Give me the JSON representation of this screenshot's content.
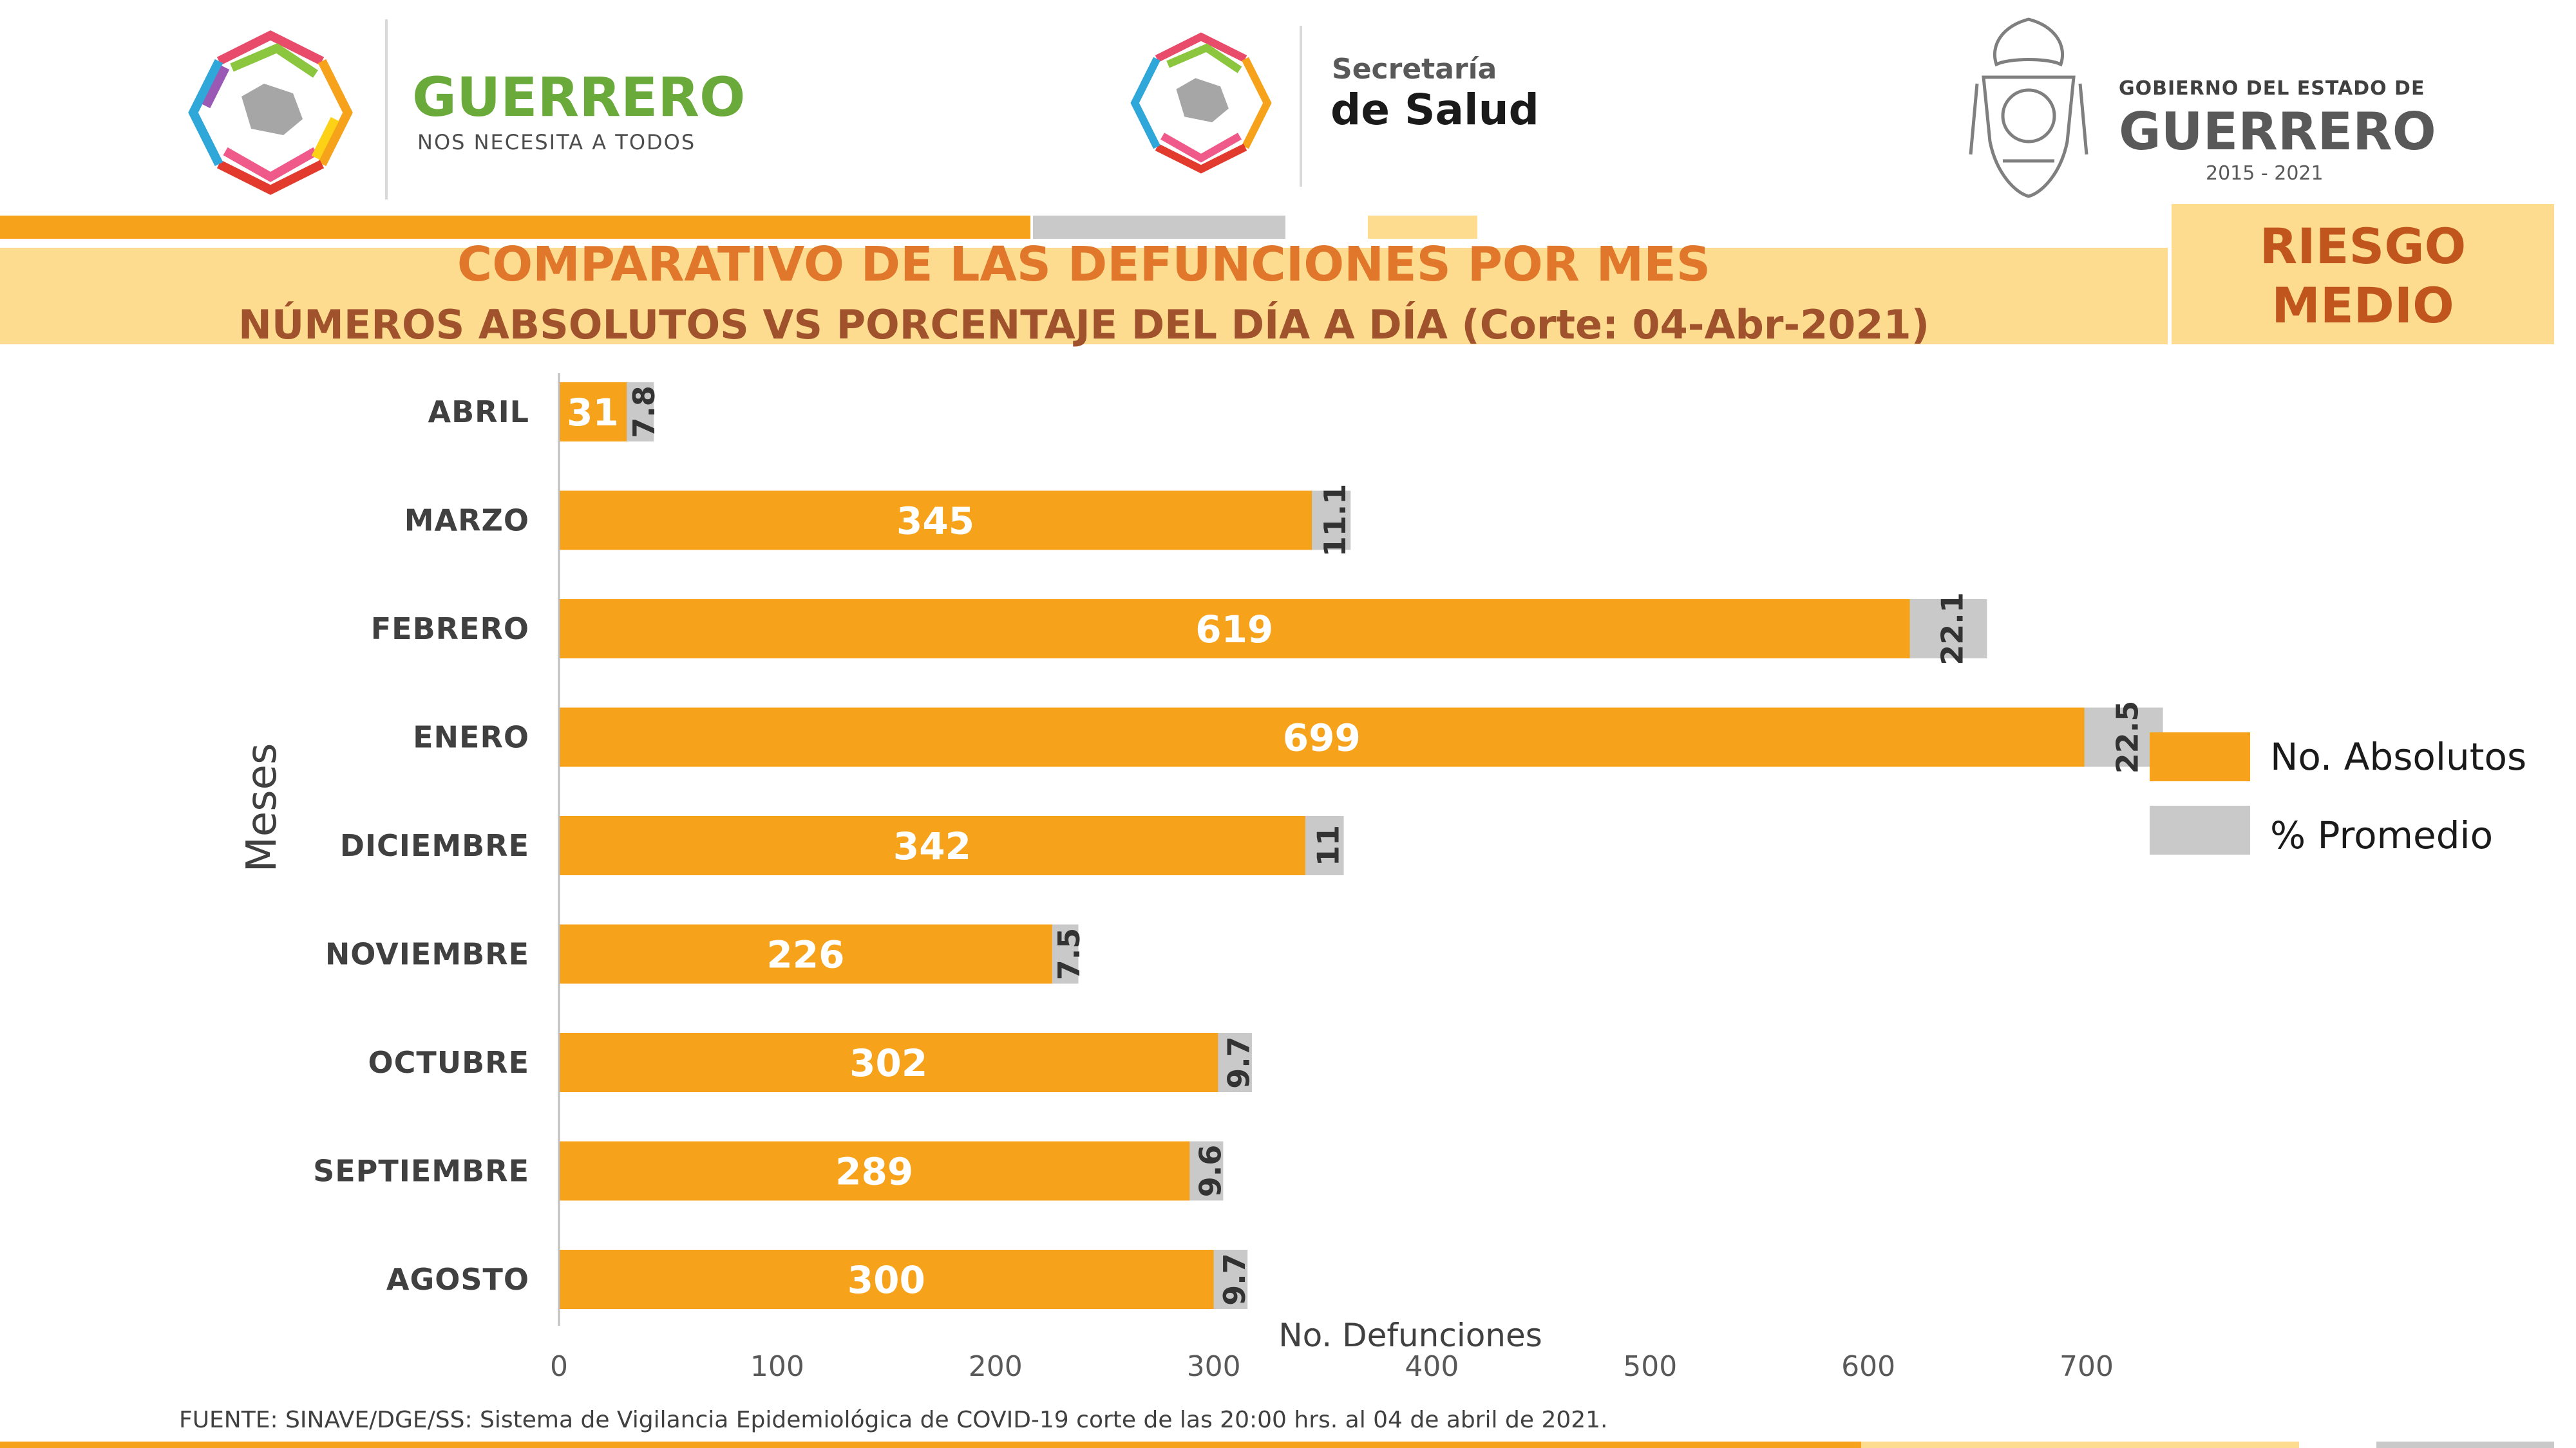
{
  "header": {
    "logo_left_title": "GUERRERO",
    "logo_left_sub": "NOS NECESITA A TODOS",
    "logo_center_line1": "Secretaría",
    "logo_center_line2": "de Salud",
    "logo_right_line1": "GOBIERNO DEL ESTADO DE",
    "logo_right_line2": "GUERRERO",
    "logo_right_years": "2015 - 2021"
  },
  "title": {
    "line1": "COMPARATIVO DE LAS DEFUNCIONES POR MES",
    "line2": "NÚMEROS ABSOLUTOS VS PORCENTAJE DEL DÍA A DÍA   (Corte: 04-Abr-2021)"
  },
  "risk_badge": {
    "line1": "RIESGO",
    "line2": "MEDIO"
  },
  "footer": {
    "source": "FUENTE: SINAVE/DGE/SS: Sistema de Vigilancia Epidemiológica de COVID-19 corte de las 20:00 hrs. al 04 de  abril de 2021."
  },
  "colors": {
    "orange": "#f7a21b",
    "gray": "#c9c9c9",
    "title_orange": "#e0772b",
    "title_brown": "#a0522d",
    "band": "#fddb8f"
  },
  "chart_data": {
    "type": "bar",
    "orientation": "horizontal",
    "xlabel": "No. Defunciones",
    "ylabel": "Meses",
    "xlim": [
      0,
      700
    ],
    "xticks": [
      "0",
      "100",
      "200",
      "300",
      "400",
      "500",
      "600",
      "700"
    ],
    "categories": [
      "ABRIL",
      "MARZO",
      "FEBRERO",
      "ENERO",
      "DICIEMBRE",
      "NOVIEMBRE",
      "OCTUBRE",
      "SEPTIEMBRE",
      "AGOSTO"
    ],
    "series": [
      {
        "name": "No. Absolutos",
        "values": [
          31,
          345,
          619,
          699,
          342,
          226,
          302,
          289,
          300
        ],
        "labels": [
          "31",
          "345",
          "619",
          "699",
          "342",
          "226",
          "302",
          "289",
          "300"
        ]
      },
      {
        "name": "% Promedio",
        "values": [
          7.8,
          11.1,
          22.1,
          22.5,
          11,
          7.5,
          9.7,
          9.6,
          9.7
        ],
        "labels": [
          "7.8",
          "11.1",
          "22.1",
          "22.5",
          "11",
          "7.5",
          "9.7",
          "9.6",
          "9.7"
        ]
      }
    ],
    "legend": "right"
  }
}
